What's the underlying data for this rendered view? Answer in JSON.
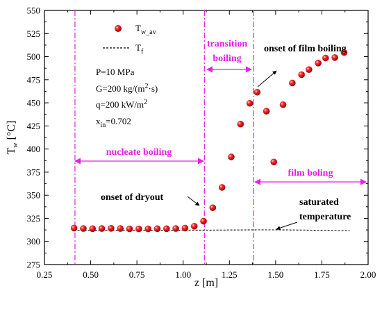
{
  "chart_data": {
    "type": "scatter",
    "xlabel": "z [m]",
    "ylabel": {
      "main": "T",
      "sub": "w",
      "unit": " [°C]"
    },
    "xlim": [
      0.25,
      2.0
    ],
    "ylim": [
      275,
      550
    ],
    "xticks": [
      "0.25",
      "0.50",
      "0.75",
      "1.00",
      "1.25",
      "1.50",
      "1.75",
      "2.00"
    ],
    "yticks": [
      "275",
      "300",
      "325",
      "350",
      "375",
      "400",
      "425",
      "450",
      "475",
      "500",
      "525",
      "550"
    ],
    "legend": [
      {
        "main": "T",
        "sub": "w_av"
      },
      {
        "main": "T",
        "sub": "f"
      }
    ],
    "series": [
      {
        "name": "Tw_av",
        "points": [
          [
            0.41,
            314.5
          ],
          [
            0.46,
            314.0
          ],
          [
            0.51,
            313.8
          ],
          [
            0.56,
            314.0
          ],
          [
            0.61,
            314.2
          ],
          [
            0.66,
            314.0
          ],
          [
            0.71,
            313.6
          ],
          [
            0.76,
            313.6
          ],
          [
            0.81,
            313.6
          ],
          [
            0.86,
            313.8
          ],
          [
            0.91,
            313.8
          ],
          [
            0.96,
            314.0
          ],
          [
            1.01,
            314.5
          ],
          [
            1.06,
            316.5
          ],
          [
            1.11,
            322.0
          ],
          [
            1.16,
            336.5
          ],
          [
            1.21,
            358.5
          ],
          [
            1.26,
            391.5
          ],
          [
            1.31,
            427.0
          ],
          [
            1.36,
            449.5
          ],
          [
            1.4,
            461.5
          ],
          [
            1.45,
            441.0
          ],
          [
            1.49,
            386.0
          ],
          [
            1.54,
            448.0
          ],
          [
            1.59,
            471.5
          ],
          [
            1.64,
            480.5
          ],
          [
            1.68,
            486.0
          ],
          [
            1.73,
            493.0
          ],
          [
            1.77,
            498.5
          ],
          [
            1.82,
            499.0
          ],
          [
            1.87,
            504.5
          ]
        ]
      },
      {
        "name": "Tf",
        "points": [
          [
            0.41,
            312.0
          ],
          [
            0.6,
            312.0
          ],
          [
            0.8,
            312.1
          ],
          [
            1.0,
            312.2
          ],
          [
            1.15,
            312.3
          ],
          [
            1.25,
            312.4
          ],
          [
            1.35,
            312.5
          ],
          [
            1.4,
            312.6
          ],
          [
            1.5,
            312.6
          ],
          [
            1.6,
            312.4
          ],
          [
            1.7,
            312.2
          ],
          [
            1.78,
            312.0
          ],
          [
            1.83,
            311.5
          ],
          [
            1.9,
            311.6
          ]
        ]
      }
    ],
    "vlines": [
      0.415,
      1.115,
      1.38
    ],
    "params": [
      {
        "text": "P=10 MPa"
      },
      {
        "text": "G=200 kg/(m",
        "sup": "2",
        "tail": "·s)"
      },
      {
        "text": "q=200 kW/m",
        "sup": "2",
        "tail": ""
      },
      {
        "text": "x",
        "sub": "in",
        "tail": "=0.702"
      }
    ],
    "annotations": {
      "transition": [
        "transition",
        "boiling"
      ],
      "nucleate": "nucleate boiling",
      "film": "film boling",
      "onset_film": "onset of film boiling",
      "onset_dryout": "onset of dryout",
      "saturated": [
        "saturated",
        "temperature"
      ]
    },
    "colors": {
      "marker": "#e01010",
      "accent": "#e61ee6"
    }
  }
}
